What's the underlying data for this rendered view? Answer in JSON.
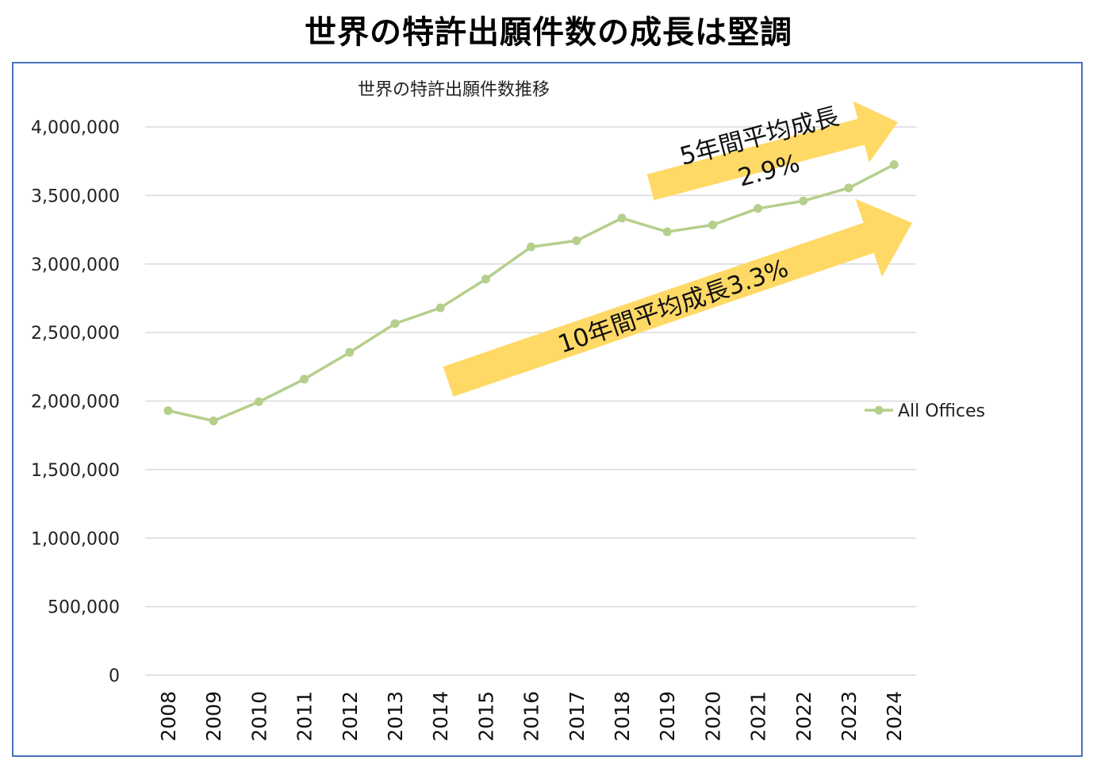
{
  "page": {
    "title": "世界の特許出願件数の成長は堅調"
  },
  "chart_data": {
    "type": "line",
    "title": "世界の特許出願件数推移",
    "xlabel": "",
    "ylabel": "",
    "ylim": [
      0,
      4000000
    ],
    "yticks": [
      0,
      500000,
      1000000,
      1500000,
      2000000,
      2500000,
      3000000,
      3500000,
      4000000
    ],
    "ytick_labels": [
      "0",
      "500,000",
      "1,000,000",
      "1,500,000",
      "2,000,000",
      "2,500,000",
      "3,000,000",
      "3,500,000",
      "4,000,000"
    ],
    "categories": [
      "2008",
      "2009",
      "2010",
      "2011",
      "2012",
      "2013",
      "2014",
      "2015",
      "2016",
      "2017",
      "2018",
      "2019",
      "2020",
      "2021",
      "2022",
      "2023",
      "2024"
    ],
    "series": [
      {
        "name": "All Offices",
        "color": "#b5cf8c",
        "values": [
          1930000,
          1855000,
          1995000,
          2160000,
          2355000,
          2565000,
          2680000,
          2890000,
          3125000,
          3170000,
          3335000,
          3235000,
          3285000,
          3405000,
          3460000,
          3555000,
          3725000
        ]
      }
    ],
    "legend": {
      "position": "right",
      "label": "All Offices"
    },
    "grid": true,
    "annotations": [
      {
        "id": "arrow5",
        "lines": [
          "5年間平均成長",
          "2.9%"
        ],
        "color": "#ffd966"
      },
      {
        "id": "arrow10",
        "lines": [
          "10年間平均成長3.3%"
        ],
        "color": "#ffd966"
      }
    ]
  }
}
